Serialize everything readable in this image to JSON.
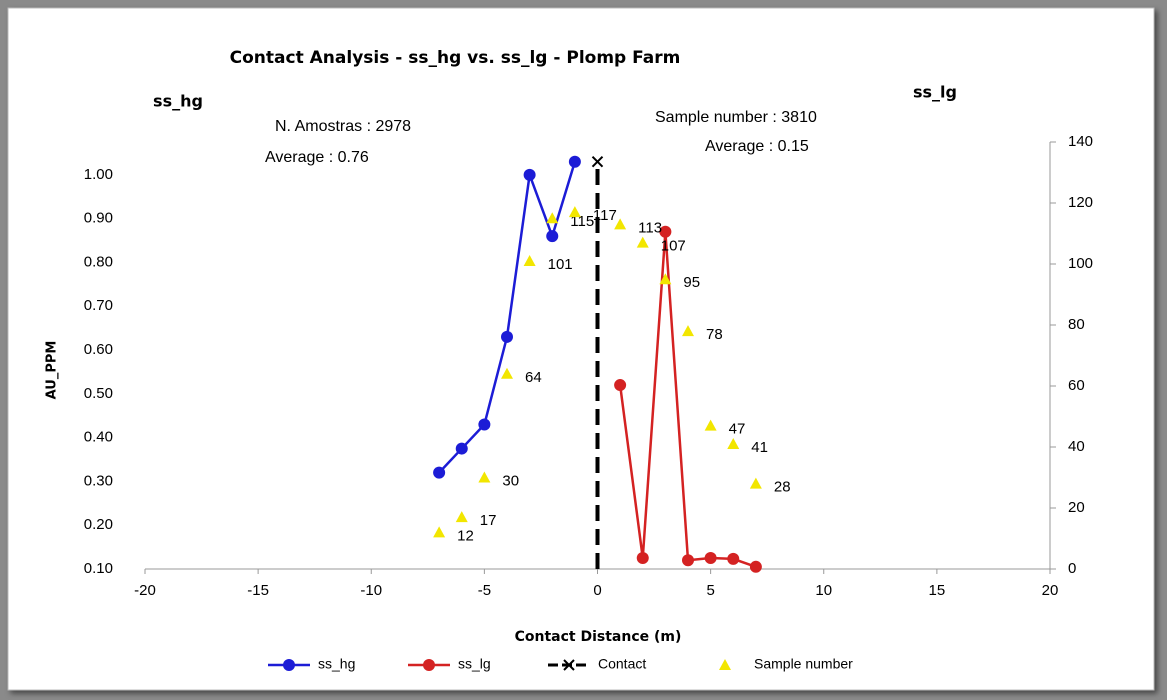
{
  "chart_data": {
    "type": "line",
    "title": "Contact Analysis - ss_hg vs. ss_lg - Plomp Farm",
    "left_label": "ss_hg",
    "right_label": "ss_lg",
    "annotations": [
      "N. Amostras : 2978",
      "Average : 0.76",
      "Sample number : 3810",
      "Average : 0.15"
    ],
    "x_label": "Contact Distance (m)",
    "y_label": "AU_PPM",
    "xlim": [
      -20,
      20
    ],
    "xticks": [
      -20,
      -15,
      -10,
      -5,
      0,
      5,
      10,
      15,
      20
    ],
    "ylim": [
      0.1,
      1.075
    ],
    "yticks": [
      {
        "value": 0.1,
        "label": "0.10"
      },
      {
        "value": 0.2,
        "label": "0.20"
      },
      {
        "value": 0.3,
        "label": "0.30"
      },
      {
        "value": 0.4,
        "label": "0.40"
      },
      {
        "value": 0.5,
        "label": "0.50"
      },
      {
        "value": 0.6,
        "label": "0.60"
      },
      {
        "value": 0.7,
        "label": "0.70"
      },
      {
        "value": 0.8,
        "label": "0.80"
      },
      {
        "value": 0.9,
        "label": "0.90"
      },
      {
        "value": 1.0,
        "label": "1.00"
      }
    ],
    "y2lim": [
      0,
      140
    ],
    "y2ticks": [
      0,
      20,
      40,
      60,
      80,
      100,
      120,
      140
    ],
    "legend": "bottom",
    "series": [
      {
        "name": "ss_hg",
        "color": "#1c1cd6",
        "marker": "circle",
        "line": "solid",
        "x": [
          -7,
          -6,
          -5,
          -4,
          -3,
          -2,
          -1
        ],
        "values": [
          0.32,
          0.375,
          0.43,
          0.63,
          1.0,
          0.86,
          1.03
        ]
      },
      {
        "name": "ss_lg",
        "color": "#d42222",
        "marker": "circle",
        "line": "solid",
        "x": [
          1,
          2,
          3,
          4,
          5,
          6,
          7
        ],
        "values": [
          0.52,
          0.125,
          0.87,
          0.12,
          0.125,
          0.123,
          0.105
        ]
      },
      {
        "name": "Contact",
        "color": "#000000",
        "marker": "x",
        "line": "dashed",
        "x": [
          0,
          0
        ],
        "values": [
          0.1,
          1.03
        ]
      },
      {
        "name": "Sample number",
        "color": "#f2e600",
        "marker": "triangle",
        "line": "none",
        "axis": "y2",
        "data_labels": true,
        "x": [
          -7,
          -6,
          -5,
          -4,
          -3,
          -2,
          -1,
          1,
          2,
          3,
          4,
          5,
          6,
          7
        ],
        "values": [
          12,
          17,
          30,
          64,
          101,
          115,
          117,
          113,
          107,
          95,
          78,
          47,
          41,
          28
        ]
      }
    ]
  }
}
